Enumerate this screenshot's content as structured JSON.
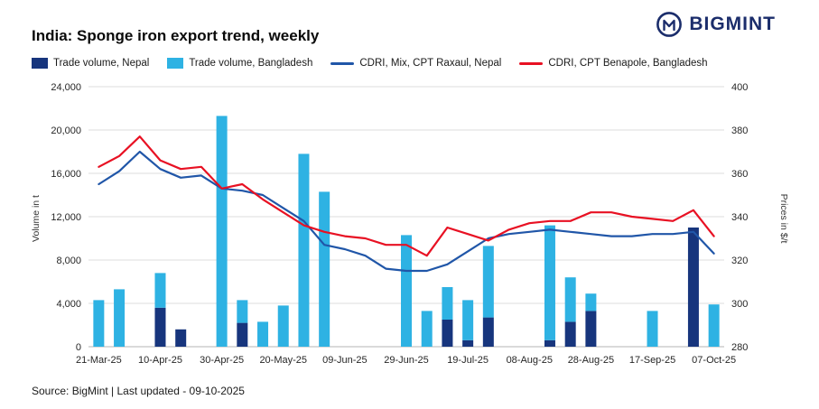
{
  "header": {
    "title": "India: Sponge iron export trend, weekly",
    "brand": "BIGMINT"
  },
  "legend": [
    {
      "label": "Trade volume, Nepal",
      "type": "bar",
      "color": "#17357d"
    },
    {
      "label": "Trade volume, Bangladesh",
      "type": "bar",
      "color": "#2eb2e3"
    },
    {
      "label": "CDRI, Mix, CPT Raxaul, Nepal",
      "type": "line",
      "color": "#2056a8"
    },
    {
      "label": "CDRI, CPT Benapole, Bangladesh",
      "type": "line",
      "color": "#e81123"
    }
  ],
  "footer": {
    "source": "Source: BigMint | Last updated - 09-10-2025"
  },
  "chart_data": {
    "type": "combo",
    "n_points": 31,
    "x_tick_every": 3,
    "x_tick_labels": [
      "21-Mar-25",
      "10-Apr-25",
      "30-Apr-25",
      "20-May-25",
      "09-Jun-25",
      "29-Jun-25",
      "19-Jul-25",
      "08-Aug-25",
      "28-Aug-25",
      "17-Sep-25",
      "07-Oct-25"
    ],
    "left_axis": {
      "label": "Volume in t",
      "min": 0,
      "max": 24000,
      "step": 4000,
      "ticks": [
        "24,000",
        "20,000",
        "16,000",
        "12,000",
        "8,000",
        "4,000",
        "0"
      ]
    },
    "right_axis": {
      "label": "Prices in $/t",
      "min": 280,
      "max": 400,
      "step": 20,
      "ticks": [
        "400",
        "380",
        "360",
        "340",
        "320",
        "300",
        "280"
      ]
    },
    "grid": {
      "horizontal": true,
      "vertical": false,
      "color": "#dcdcdc",
      "baseline_color": "#b5b5b5"
    },
    "series": [
      {
        "name": "Trade volume, Nepal",
        "type": "bar",
        "stack": "volume",
        "axis": "left",
        "color": "#17357d",
        "values": [
          0,
          0,
          0,
          3600,
          1600,
          0,
          0,
          2200,
          0,
          0,
          0,
          0,
          0,
          0,
          0,
          0,
          0,
          2500,
          600,
          2700,
          0,
          0,
          600,
          2300,
          3300,
          0,
          0,
          0,
          0,
          11000,
          0
        ]
      },
      {
        "name": "Trade volume, Bangladesh",
        "type": "bar",
        "stack": "volume",
        "axis": "left",
        "color": "#2eb2e3",
        "values": [
          4300,
          5300,
          0,
          3200,
          0,
          0,
          21300,
          2100,
          2300,
          3800,
          17800,
          14300,
          0,
          0,
          0,
          10300,
          3300,
          3000,
          3700,
          6600,
          0,
          0,
          10600,
          4100,
          1600,
          0,
          0,
          3300,
          0,
          0,
          3900
        ]
      },
      {
        "name": "CDRI, Mix, CPT Raxaul, Nepal",
        "type": "line",
        "axis": "right",
        "color": "#2056a8",
        "values": [
          355,
          361,
          370,
          362,
          358,
          359,
          353,
          352,
          350,
          344,
          338,
          327,
          325,
          322,
          316,
          315,
          315,
          318,
          324,
          330,
          332,
          333,
          334,
          333,
          332,
          331,
          331,
          332,
          332,
          333,
          323
        ]
      },
      {
        "name": "CDRI, CPT Benapole, Bangladesh",
        "type": "line",
        "axis": "right",
        "color": "#e81123",
        "values": [
          363,
          368,
          377,
          366,
          362,
          363,
          353,
          355,
          348,
          342,
          336,
          333,
          331,
          330,
          327,
          327,
          322,
          335,
          332,
          329,
          334,
          337,
          338,
          338,
          342,
          342,
          340,
          339,
          338,
          343,
          331
        ]
      }
    ]
  }
}
